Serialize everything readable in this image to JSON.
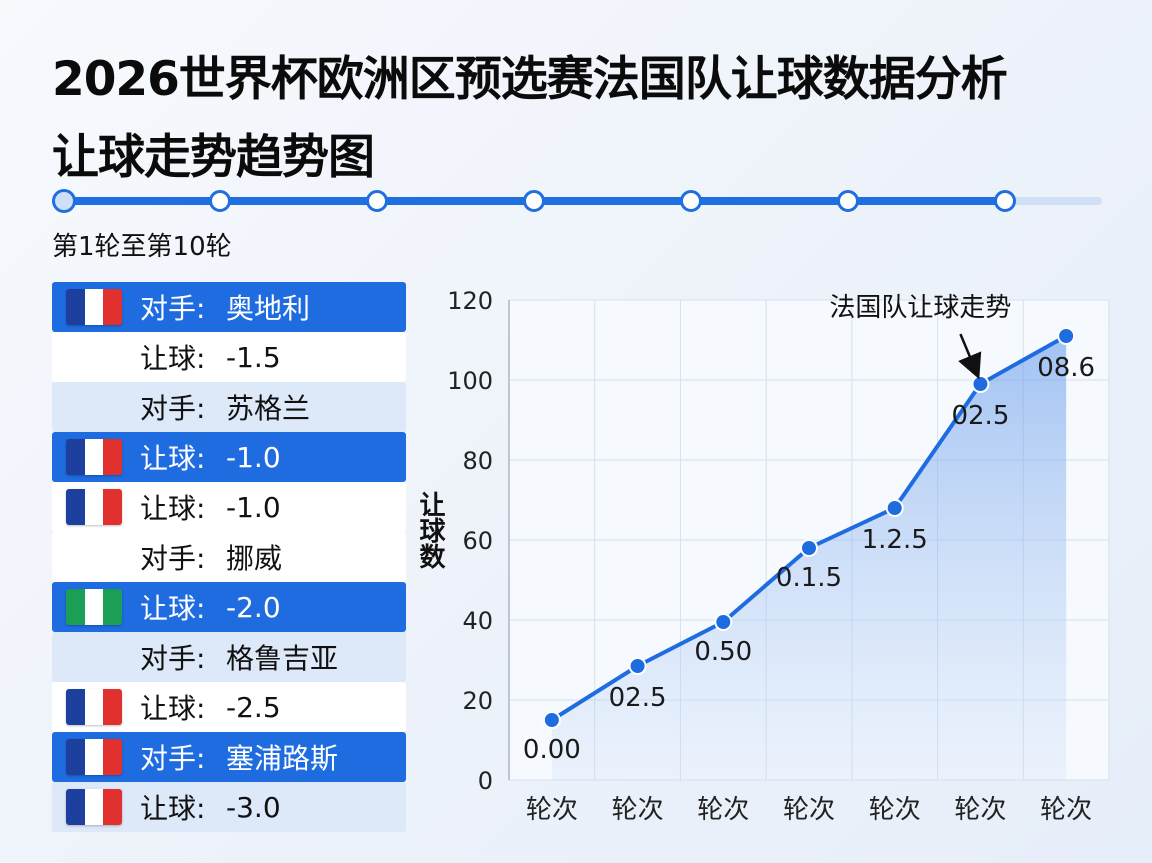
{
  "header": {
    "title_line1": "2026世界杯欧洲区预选赛法国队让球数据分析",
    "title_line2": "让球走势趋势图",
    "round_range": "第1轮至第10轮",
    "progress_steps": 7,
    "progress_active": 7
  },
  "colors": {
    "accent": "#1e6ce0",
    "france_blue": "#1d3f9e",
    "france_red": "#e0312f",
    "nigeria_green": "#1b9e55"
  },
  "match_list": [
    {
      "label": "对手:",
      "value": "奥地利",
      "style": "blue",
      "flag": "france-flag-icon"
    },
    {
      "label": "让球:",
      "value": "-1.5",
      "style": "white",
      "flag": ""
    },
    {
      "label": "对手:",
      "value": "苏格兰",
      "style": "light",
      "flag": ""
    },
    {
      "label": "让球:",
      "value": "-1.0",
      "style": "blue",
      "flag": "france-flag-icon"
    },
    {
      "label": "让球:",
      "value": "-1.0",
      "style": "white",
      "flag": "france-flag-icon"
    },
    {
      "label": "对手:",
      "value": "挪威",
      "style": "white",
      "flag": ""
    },
    {
      "label": "让球:",
      "value": "-2.0",
      "style": "blue",
      "flag": "nigeria-flag-icon"
    },
    {
      "label": "对手:",
      "value": "格鲁吉亚",
      "style": "light",
      "flag": ""
    },
    {
      "label": "让球:",
      "value": "-2.5",
      "style": "white",
      "flag": "france-flag-icon"
    },
    {
      "label": "对手:",
      "value": "塞浦路斯",
      "style": "blue",
      "flag": "france-flag-icon"
    },
    {
      "label": "让球:",
      "value": "-3.0",
      "style": "light",
      "flag": "france-flag-icon"
    }
  ],
  "chart_data": {
    "type": "area",
    "title": "",
    "ylabel": "让球数",
    "xlabel": "",
    "categories": [
      "轮次",
      "轮次",
      "轮次",
      "轮次",
      "轮次",
      "轮次",
      "轮次"
    ],
    "series": [
      {
        "name": "法国队让球走势",
        "values": [
          15,
          28.5,
          39.5,
          58,
          68,
          99,
          111
        ]
      }
    ],
    "data_labels": [
      "0.00",
      "02.5",
      "0.50",
      "0.1.5",
      "1.2.5",
      "02.5",
      "08.6"
    ],
    "ylim": [
      0,
      120
    ],
    "yticks": [
      0,
      20,
      40,
      60,
      80,
      100,
      120
    ],
    "grid": true,
    "annotation": {
      "text": "法国队让球走势",
      "point_index": 5
    }
  }
}
